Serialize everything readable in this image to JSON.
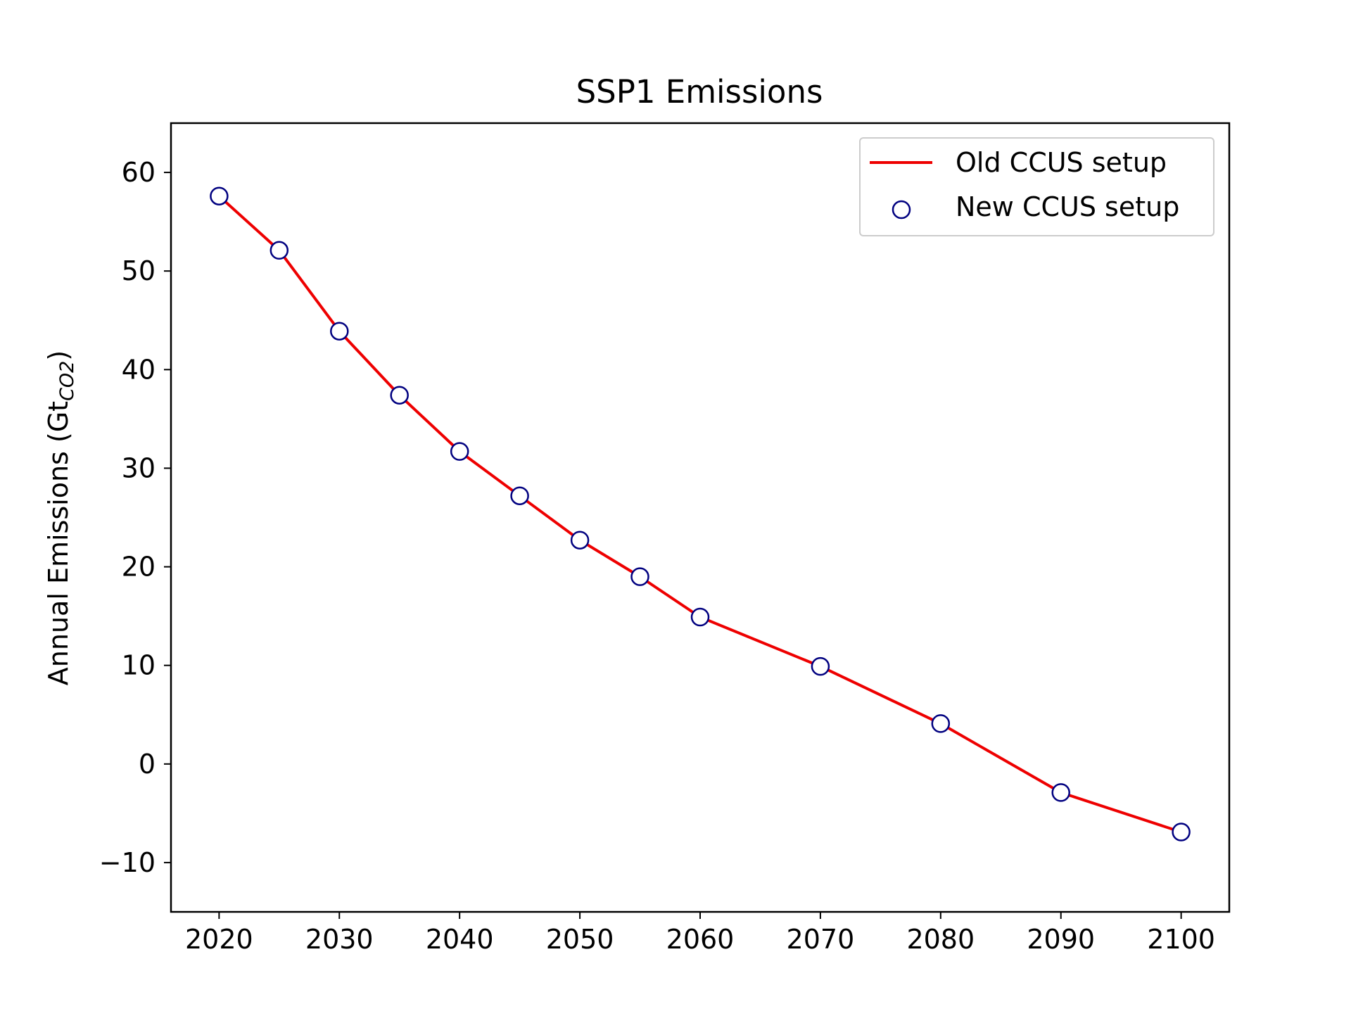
{
  "chart_data": {
    "type": "line",
    "title": "SSP1 Emissions",
    "xlabel": "",
    "ylabel": "Annual Emissions (Gt",
    "ylabel_subscript": "CO2",
    "ylabel_close": ")",
    "xlim": [
      2016,
      2104
    ],
    "ylim": [
      -15,
      65
    ],
    "x_ticks": [
      2020,
      2030,
      2040,
      2050,
      2060,
      2070,
      2080,
      2090,
      2100
    ],
    "x_tick_labels": [
      "2020",
      "2030",
      "2040",
      "2050",
      "2060",
      "2070",
      "2080",
      "2090",
      "2100"
    ],
    "y_ticks": [
      -10,
      0,
      10,
      20,
      30,
      40,
      50,
      60
    ],
    "y_tick_labels": [
      "−10",
      "0",
      "10",
      "20",
      "30",
      "40",
      "50",
      "60"
    ],
    "grid": false,
    "legend_position": "top-right",
    "series": [
      {
        "name": "Old CCUS setup",
        "kind": "line",
        "color": "#ee0000",
        "x": [
          2020,
          2025,
          2030,
          2035,
          2040,
          2045,
          2050,
          2055,
          2060,
          2070,
          2080,
          2090,
          2100
        ],
        "y": [
          57.6,
          52.1,
          43.9,
          37.4,
          31.7,
          27.2,
          22.7,
          19.0,
          14.9,
          9.9,
          4.1,
          -2.9,
          -6.9
        ]
      },
      {
        "name": "New CCUS setup",
        "kind": "scatter",
        "color": "#000080",
        "fill": "#ffffff",
        "x": [
          2020,
          2025,
          2030,
          2035,
          2040,
          2045,
          2050,
          2055,
          2060,
          2070,
          2080,
          2090,
          2100
        ],
        "y": [
          57.6,
          52.1,
          43.9,
          37.4,
          31.7,
          27.2,
          22.7,
          19.0,
          14.9,
          9.9,
          4.1,
          -2.9,
          -6.9
        ]
      }
    ]
  }
}
